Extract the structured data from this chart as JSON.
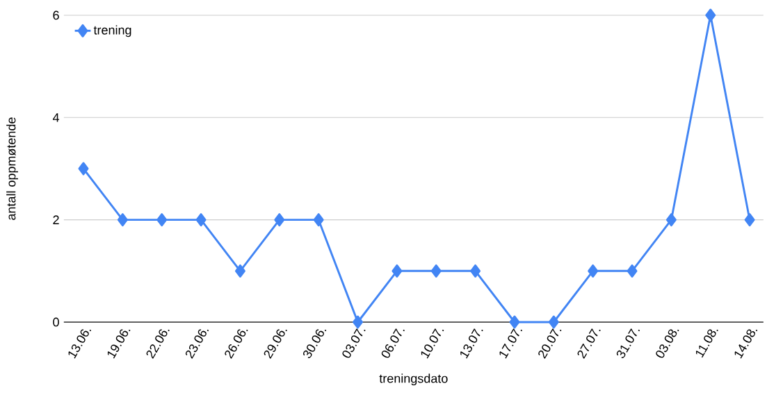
{
  "chart_data": {
    "type": "line",
    "xlabel": "treningsdato",
    "ylabel": "antall oppmøtende",
    "categories": [
      "13.06.",
      "19.06.",
      "22.06.",
      "23.06.",
      "26.06.",
      "29.06.",
      "30.06.",
      "03.07.",
      "06.07.",
      "10.07.",
      "13.07.",
      "17.07.",
      "20.07.",
      "27.07.",
      "31.07.",
      "03.08.",
      "11.08.",
      "14.08."
    ],
    "series": [
      {
        "name": "trening",
        "color": "#4285f4",
        "values": [
          3,
          2,
          2,
          2,
          1,
          2,
          2,
          0,
          1,
          1,
          1,
          0,
          0,
          1,
          1,
          2,
          6,
          2
        ]
      }
    ],
    "ylim": [
      0,
      6
    ],
    "yticks": [
      0,
      2,
      4,
      6
    ],
    "grid": "y",
    "legend": "top left",
    "marker": "diamond",
    "line_style": "solid"
  }
}
